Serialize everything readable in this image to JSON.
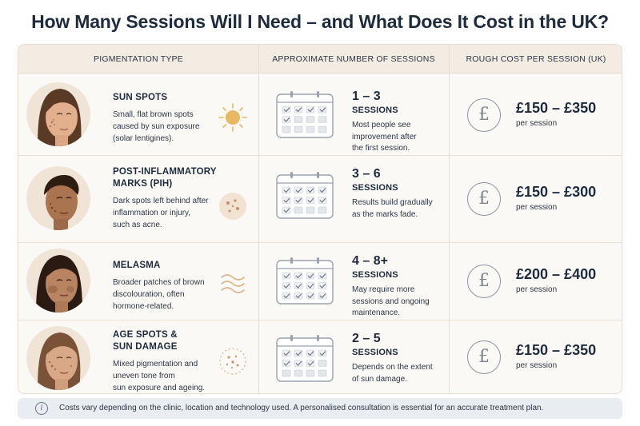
{
  "title": "How Many Sessions Will I Need – and What Does It Cost in the UK?",
  "columns": {
    "type": "PIGMENTATION TYPE",
    "sessions": "APPROXIMATE NUMBER OF SESSIONS",
    "cost": "ROUGH COST PER SESSION (UK)"
  },
  "rows": [
    {
      "name_lines": [
        "SUN SPOTS"
      ],
      "desc_lines": [
        "Small, flat brown spots",
        "caused by sun exposure",
        "(solar lentigines)."
      ],
      "sessions": "1 – 3",
      "sessions_label": "SESSIONS",
      "note_lines": [
        "Most people see",
        "improvement after",
        "the first session."
      ],
      "price": "£150 – £350",
      "per": "per session",
      "icon": "sun-icon",
      "calendar_checked": 5
    },
    {
      "name_lines": [
        "POST-INFLAMMATORY",
        "MARKS (PIH)"
      ],
      "desc_lines": [
        "Dark spots left behind after",
        "inflammation or injury,",
        "such as acne."
      ],
      "sessions": "3 – 6",
      "sessions_label": "SESSIONS",
      "note_lines": [
        "Results build gradually",
        "as the marks fade."
      ],
      "price": "£150 – £300",
      "per": "per session",
      "icon": "dots-icon",
      "calendar_checked": 9
    },
    {
      "name_lines": [
        "MELASMA"
      ],
      "desc_lines": [
        "Broader patches of brown",
        "discolouration, often",
        "hormone-related."
      ],
      "sessions": "4 – 8+",
      "sessions_label": "SESSIONS",
      "note_lines": [
        "May require more",
        "sessions and ongoing",
        "maintenance."
      ],
      "price": "£200 – £400",
      "per": "per session",
      "icon": "waves-icon",
      "calendar_checked": 12
    },
    {
      "name_lines": [
        "AGE SPOTS &",
        "SUN DAMAGE"
      ],
      "desc_lines": [
        "Mixed pigmentation and",
        "uneven tone from",
        "sun exposure and ageing."
      ],
      "sessions": "2 – 5",
      "sessions_label": "SESSIONS",
      "note_lines": [
        "Depends on the extent",
        "of sun damage."
      ],
      "price": "£150 – £350",
      "per": "per session",
      "icon": "speckle-circle-icon",
      "calendar_checked": 7
    }
  ],
  "pound_symbol": "£",
  "footer": {
    "info_symbol": "i",
    "text": "Costs vary depending on the clinic, location and technology used. A personalised consultation is essential for an accurate treatment plan."
  },
  "colors": {
    "title": "#1e2b3c",
    "header_bg": "#f3ece2",
    "panel_bg": "#fbf9f5",
    "accent_sun": "#e8b862",
    "footer_bg": "#e9ecf0"
  }
}
